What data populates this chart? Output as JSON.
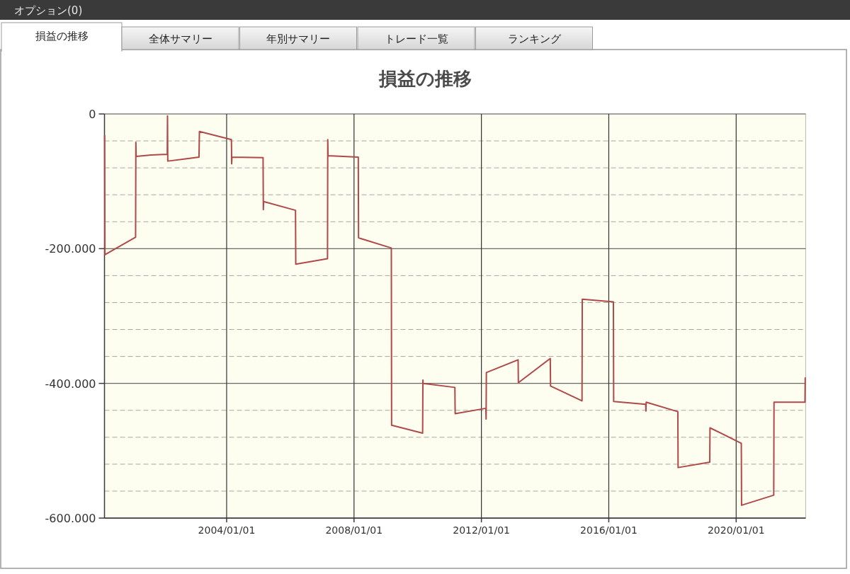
{
  "chart_data": {
    "type": "line",
    "title": "損益の推移",
    "annotations": [
      "オプション(0)",
      "損益の推移",
      "全体サマリー",
      "年別サマリー",
      "トレード一覧",
      "ランキング"
    ],
    "x": [
      "2000-03-03",
      "2000-03-06",
      "2001-02-21",
      "2001-02-24",
      "2001-02-27",
      "2001-08-17",
      "2002-02-19",
      "2002-02-22",
      "2002-02-25",
      "2003-02-18",
      "2003-02-23",
      "2004-02-25",
      "2004-02-28",
      "2004-03-02",
      "2005-02-22",
      "2005-02-25",
      "2005-02-28",
      "2006-03-01",
      "2006-03-04",
      "2007-03-03",
      "2007-03-06",
      "2007-03-09",
      "2008-02-19",
      "2008-02-22",
      "2009-03-04",
      "2009-03-07",
      "2010-02-26",
      "2010-03-01",
      "2010-03-04",
      "2011-03-03",
      "2011-03-06",
      "2012-02-21",
      "2012-02-24",
      "2012-02-27",
      "2013-02-25",
      "2013-02-28",
      "2014-03-01",
      "2014-03-04",
      "2015-02-28",
      "2015-03-03",
      "2016-02-23",
      "2016-02-26",
      "2017-02-27",
      "2017-03-02",
      "2017-03-05",
      "2018-03-03",
      "2018-03-06",
      "2019-03-04",
      "2019-03-07",
      "2020-02-29",
      "2020-03-03",
      "2021-03-07",
      "2021-03-10",
      "2022-02-28",
      "2022-03-03"
    ],
    "series": [
      {
        "color": "#b04a4a",
        "values": [
          -32000,
          -209000,
          -183000,
          -42000,
          -63000,
          -61000,
          -60000,
          -3000,
          -70000,
          -64000,
          -26000,
          -38000,
          -74000,
          -64000,
          -65000,
          -142000,
          -130000,
          -143000,
          -223000,
          -215000,
          -38000,
          -62000,
          -64000,
          -184000,
          -199000,
          -462000,
          -474000,
          -395000,
          -400000,
          -406000,
          -445000,
          -437000,
          -453000,
          -384000,
          -365000,
          -399000,
          -363000,
          -404000,
          -426000,
          -275000,
          -279000,
          -427000,
          -431000,
          -441000,
          -428000,
          -442000,
          -525000,
          -517000,
          -466000,
          -489000,
          -581000,
          -566000,
          -428000,
          -428000,
          -392000
        ]
      }
    ],
    "xlim": [
      "2000-03-01",
      "2022-03-08"
    ],
    "xticks": [
      {
        "value": "2004-01-01",
        "label": "2004/01/01"
      },
      {
        "value": "2008-01-01",
        "label": "2008/01/01"
      },
      {
        "value": "2012-01-01",
        "label": "2012/01/01"
      },
      {
        "value": "2016-01-01",
        "label": "2016/01/01"
      },
      {
        "value": "2020-01-01",
        "label": "2020/01/01"
      }
    ],
    "ylim": [
      -600000,
      0
    ],
    "yticks": [
      0,
      {
        "value": -40000,
        "label": null
      },
      {
        "value": -80000,
        "label": null
      },
      {
        "value": -120000,
        "label": null
      },
      {
        "value": -160000,
        "label": null
      },
      {
        "value": -200000,
        "label": "-200.000"
      },
      {
        "value": -240000,
        "label": null
      },
      {
        "value": -280000,
        "label": null
      },
      {
        "value": -320000,
        "label": null
      },
      {
        "value": -360000,
        "label": null
      },
      {
        "value": -400000,
        "label": "-400.000"
      },
      {
        "value": -440000,
        "label": null
      },
      {
        "value": -480000,
        "label": null
      },
      {
        "value": -520000,
        "label": null
      },
      {
        "value": -560000,
        "label": null
      },
      {
        "value": -600000,
        "label": "-600.000"
      }
    ],
    "grid": true
  }
}
